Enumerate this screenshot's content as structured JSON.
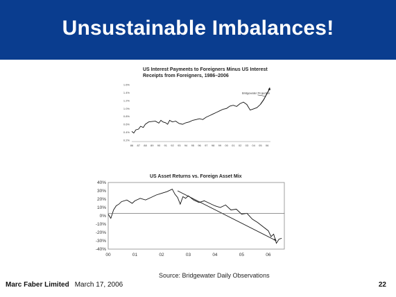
{
  "slide": {
    "title": "Unsustainable Imbalances!",
    "source": "Source: Bridgewater Daily Observations",
    "footer_company": "Marc Faber Limited",
    "footer_date": "March 17, 2006",
    "page_number": "22",
    "header_color": "#0a3d8f"
  },
  "chart_data": [
    {
      "type": "line",
      "title": "US Interest Payments to Foreigners Minus US Interest Receipts from Foreigners, 1986–2006",
      "title_lines": [
        "US Interest Payments to Foreigners Minus US Interest",
        "Receipts from Foreigners, 1986–2006"
      ],
      "x_tick_labels": [
        "86",
        "87",
        "88",
        "89",
        "90",
        "91",
        "92",
        "93",
        "94",
        "95",
        "96",
        "97",
        "98",
        "99",
        "00",
        "01",
        "02",
        "03",
        "04",
        "05",
        "06"
      ],
      "y_tick_labels": [
        "0.2%",
        "0.4%",
        "0.6%",
        "0.8%",
        "1.0%",
        "1.2%",
        "1.4%",
        "1.6%"
      ],
      "xlim": [
        1986,
        2006.5
      ],
      "ylim": [
        0.2,
        1.6
      ],
      "annotation": "Bridgewater Projection",
      "series": [
        {
          "x": [
            1986.0,
            1986.3,
            1986.6,
            1987.0,
            1987.3,
            1987.7,
            1988.0,
            1988.5,
            1989.0,
            1989.5,
            1990.0,
            1990.3,
            1990.6,
            1991.0,
            1991.3,
            1991.6,
            1992.0,
            1992.5,
            1993.0,
            1993.5,
            1994.0,
            1994.5,
            1995.0,
            1995.5,
            1996.0,
            1996.5,
            1997.0,
            1997.5,
            1998.0,
            1998.5,
            1999.0,
            1999.5,
            2000.0,
            2000.5,
            2001.0,
            2001.5,
            2002.0,
            2002.5,
            2003.0,
            2003.5,
            2004.0,
            2004.5,
            2005.0
          ],
          "values": [
            0.42,
            0.38,
            0.46,
            0.48,
            0.55,
            0.52,
            0.6,
            0.66,
            0.67,
            0.68,
            0.63,
            0.7,
            0.66,
            0.64,
            0.6,
            0.7,
            0.66,
            0.68,
            0.62,
            0.6,
            0.64,
            0.66,
            0.7,
            0.72,
            0.74,
            0.72,
            0.78,
            0.82,
            0.86,
            0.9,
            0.94,
            0.98,
            1.0,
            1.06,
            1.08,
            1.05,
            1.12,
            1.16,
            1.1,
            0.96,
            0.99,
            1.02,
            1.1
          ]
        },
        {
          "name": "Bridgewater Projection",
          "x": [
            2005.0,
            2005.5,
            2006.0,
            2006.4
          ],
          "values": [
            1.1,
            1.22,
            1.38,
            1.5
          ]
        }
      ]
    },
    {
      "type": "line",
      "title": "US Asset Returns vs. Foreign Asset Mix",
      "x_tick_labels": [
        "00",
        "01",
        "02",
        "03",
        "04",
        "05",
        "06"
      ],
      "y_tick_labels": [
        "-40%",
        "-30%",
        "-20%",
        "-10%",
        "0%",
        "10%",
        "20%",
        "30%",
        "40%"
      ],
      "xlim": [
        2000,
        2006.6
      ],
      "ylim": [
        -40,
        40
      ],
      "series": [
        {
          "x": [
            2000.0,
            2000.1,
            2000.2,
            2000.3,
            2000.4,
            2000.5,
            2000.7,
            2000.9,
            2001.0,
            2001.2,
            2001.4,
            2001.6,
            2001.8,
            2002.0,
            2002.2,
            2002.4,
            2002.5,
            2002.6,
            2002.7,
            2002.8,
            2002.9,
            2003.0,
            2003.2,
            2003.4,
            2003.6,
            2003.8,
            2004.0,
            2004.2,
            2004.4,
            2004.6,
            2004.8,
            2005.0,
            2005.2,
            2005.4,
            2005.6,
            2005.8,
            2006.0,
            2006.1,
            2006.2,
            2006.3,
            2006.4,
            2006.5
          ],
          "values": [
            2,
            -3,
            7,
            12,
            14,
            17,
            19,
            15,
            18,
            21,
            19,
            22,
            25,
            27,
            29,
            32,
            26,
            22,
            14,
            23,
            21,
            24,
            19,
            16,
            18,
            15,
            12,
            10,
            13,
            7,
            8,
            2,
            3,
            -4,
            -8,
            -13,
            -18,
            -25,
            -22,
            -33,
            -28,
            -27
          ]
        },
        {
          "name": "trend",
          "x": [
            2002.6,
            2006.3
          ],
          "values": [
            30,
            -30
          ]
        },
        {
          "name": "zero",
          "x": [
            2000.0,
            2006.6
          ],
          "values": [
            3,
            3
          ]
        }
      ]
    }
  ]
}
